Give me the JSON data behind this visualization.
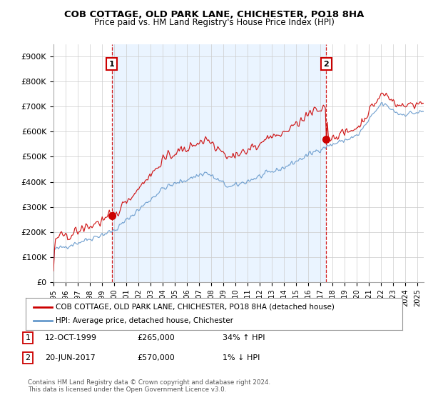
{
  "title_line1": "COB COTTAGE, OLD PARK LANE, CHICHESTER, PO18 8HA",
  "title_line2": "Price paid vs. HM Land Registry's House Price Index (HPI)",
  "ylim": [
    0,
    950000
  ],
  "yticks": [
    0,
    100000,
    200000,
    300000,
    400000,
    500000,
    600000,
    700000,
    800000,
    900000
  ],
  "ytick_labels": [
    "£0",
    "£100K",
    "£200K",
    "£300K",
    "£400K",
    "£500K",
    "£600K",
    "£700K",
    "£800K",
    "£900K"
  ],
  "xlim_start": 1995.0,
  "xlim_end": 2025.5,
  "xticks": [
    1995,
    1996,
    1997,
    1998,
    1999,
    2000,
    2001,
    2002,
    2003,
    2004,
    2005,
    2006,
    2007,
    2008,
    2009,
    2010,
    2011,
    2012,
    2013,
    2014,
    2015,
    2016,
    2017,
    2018,
    2019,
    2020,
    2021,
    2022,
    2023,
    2024,
    2025
  ],
  "red_color": "#cc0000",
  "blue_color": "#6699cc",
  "blue_fill_color": "#ddeeff",
  "transaction1_x": 1999.79,
  "transaction1_y": 265000,
  "transaction1_label": "1",
  "transaction1_date": "12-OCT-1999",
  "transaction1_price": "£265,000",
  "transaction1_hpi": "34% ↑ HPI",
  "transaction2_x": 2017.47,
  "transaction2_y": 570000,
  "transaction2_label": "2",
  "transaction2_date": "20-JUN-2017",
  "transaction2_price": "£570,000",
  "transaction2_hpi": "1% ↓ HPI",
  "legend_line1": "COB COTTAGE, OLD PARK LANE, CHICHESTER, PO18 8HA (detached house)",
  "legend_line2": "HPI: Average price, detached house, Chichester",
  "footer_line1": "Contains HM Land Registry data © Crown copyright and database right 2024.",
  "footer_line2": "This data is licensed under the Open Government Licence v3.0.",
  "background_color": "#ffffff",
  "grid_color": "#cccccc"
}
